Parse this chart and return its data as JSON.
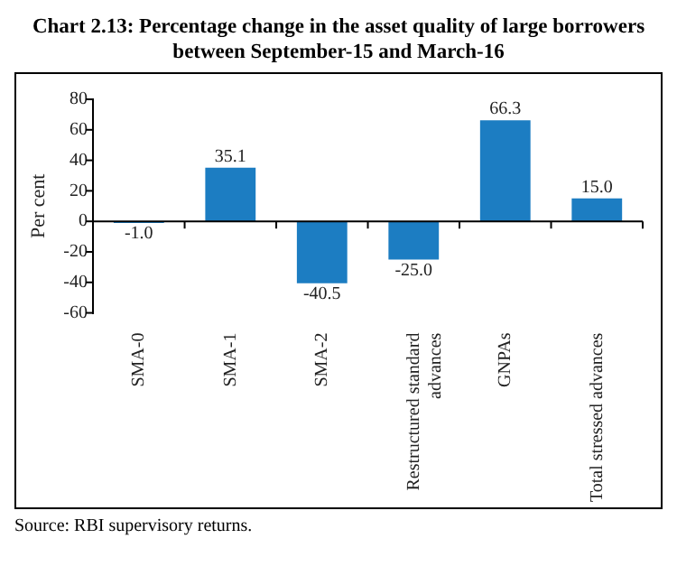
{
  "chart_data": {
    "type": "bar",
    "title": "Chart 2.13: Percentage change in the asset quality of large borrowers between September-15 and March-16",
    "ylabel": "Per cent",
    "categories": [
      "SMA-0",
      "SMA-1",
      "SMA-2",
      "Restructured standard advances",
      "GNPAs",
      "Total stressed advances"
    ],
    "values": [
      -1.0,
      35.1,
      -40.5,
      -25.0,
      66.3,
      15.0
    ],
    "color": "#1c7dc2",
    "ylim": [
      -60,
      80
    ],
    "yticks": [
      -60,
      -40,
      -20,
      0,
      20,
      40,
      60,
      80
    ],
    "value_labels": [
      "-1.0",
      "35.1",
      "-40.5",
      "-25.0",
      "66.3",
      "15.0"
    ],
    "annotations": [
      "Source: RBI supervisory returns."
    ]
  }
}
